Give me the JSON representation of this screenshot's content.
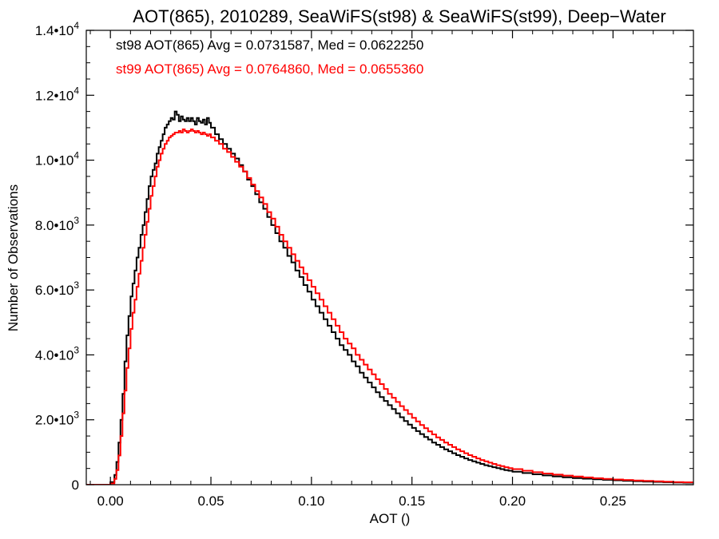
{
  "chart_data": {
    "type": "line",
    "title": "AOT(865), 2010289, SeaWiFS(st98) & SeaWiFS(st99), Deep−Water",
    "xlabel": "AOT ()",
    "ylabel": "Number of Observations",
    "xlim": [
      -0.012,
      0.29
    ],
    "ylim": [
      0,
      14000
    ],
    "grid": false,
    "step": true,
    "x_ticks": [
      {
        "value": 0.0,
        "label": "0.00"
      },
      {
        "value": 0.05,
        "label": "0.05"
      },
      {
        "value": 0.1,
        "label": "0.10"
      },
      {
        "value": 0.15,
        "label": "0.15"
      },
      {
        "value": 0.2,
        "label": "0.20"
      },
      {
        "value": 0.25,
        "label": "0.25"
      }
    ],
    "y_ticks": [
      {
        "value": 0,
        "mantissa": "0",
        "exp": ""
      },
      {
        "value": 2000,
        "mantissa": "2.0•10",
        "exp": "3"
      },
      {
        "value": 4000,
        "mantissa": "4.0•10",
        "exp": "3"
      },
      {
        "value": 6000,
        "mantissa": "6.0•10",
        "exp": "3"
      },
      {
        "value": 8000,
        "mantissa": "8.0•10",
        "exp": "3"
      },
      {
        "value": 10000,
        "mantissa": "1.0•10",
        "exp": "4"
      },
      {
        "value": 12000,
        "mantissa": "1.2•10",
        "exp": "4"
      },
      {
        "value": 14000,
        "mantissa": "1.4•10",
        "exp": "4"
      }
    ],
    "annotations": [
      {
        "text": "st98 AOT(865) Avg = 0.0731587, Med = 0.0622250",
        "color": "#000000"
      },
      {
        "text": "st99 AOT(865) Avg = 0.0764860, Med = 0.0655360",
        "color": "#ff0000"
      }
    ],
    "series": [
      {
        "color": "#000000",
        "points": [
          [
            -0.022,
            0
          ],
          [
            -0.002,
            0
          ],
          [
            0.0,
            80
          ],
          [
            0.002,
            300
          ],
          [
            0.003,
            700
          ],
          [
            0.004,
            1300
          ],
          [
            0.005,
            2000
          ],
          [
            0.006,
            2800
          ],
          [
            0.007,
            3800
          ],
          [
            0.008,
            4600
          ],
          [
            0.009,
            5200
          ],
          [
            0.01,
            5800
          ],
          [
            0.011,
            6200
          ],
          [
            0.012,
            6600
          ],
          [
            0.013,
            7000
          ],
          [
            0.014,
            7300
          ],
          [
            0.015,
            7700
          ],
          [
            0.016,
            8000
          ],
          [
            0.017,
            8400
          ],
          [
            0.018,
            8800
          ],
          [
            0.019,
            9200
          ],
          [
            0.02,
            9500
          ],
          [
            0.021,
            9700
          ],
          [
            0.022,
            9900
          ],
          [
            0.023,
            10200
          ],
          [
            0.024,
            10400
          ],
          [
            0.025,
            10600
          ],
          [
            0.026,
            10800
          ],
          [
            0.027,
            11000
          ],
          [
            0.028,
            11100
          ],
          [
            0.029,
            11200
          ],
          [
            0.03,
            11300
          ],
          [
            0.031,
            11250
          ],
          [
            0.032,
            11500
          ],
          [
            0.033,
            11400
          ],
          [
            0.034,
            11200
          ],
          [
            0.035,
            11350
          ],
          [
            0.036,
            11250
          ],
          [
            0.037,
            11200
          ],
          [
            0.038,
            11300
          ],
          [
            0.039,
            11200
          ],
          [
            0.04,
            11300
          ],
          [
            0.041,
            11200
          ],
          [
            0.042,
            11100
          ],
          [
            0.043,
            11300
          ],
          [
            0.044,
            11200
          ],
          [
            0.045,
            11150
          ],
          [
            0.046,
            11250
          ],
          [
            0.047,
            11100
          ],
          [
            0.048,
            11300
          ],
          [
            0.049,
            11150
          ],
          [
            0.05,
            11000
          ],
          [
            0.052,
            10800
          ],
          [
            0.054,
            10650
          ],
          [
            0.056,
            10500
          ],
          [
            0.058,
            10350
          ],
          [
            0.06,
            10200
          ],
          [
            0.062,
            10050
          ],
          [
            0.064,
            9850
          ],
          [
            0.066,
            9650
          ],
          [
            0.068,
            9400
          ],
          [
            0.07,
            9200
          ],
          [
            0.072,
            8950
          ],
          [
            0.074,
            8700
          ],
          [
            0.076,
            8500
          ],
          [
            0.078,
            8250
          ],
          [
            0.08,
            8000
          ],
          [
            0.082,
            7750
          ],
          [
            0.084,
            7500
          ],
          [
            0.086,
            7300
          ],
          [
            0.088,
            7050
          ],
          [
            0.09,
            6850
          ],
          [
            0.092,
            6600
          ],
          [
            0.094,
            6400
          ],
          [
            0.096,
            6150
          ],
          [
            0.098,
            5950
          ],
          [
            0.1,
            5700
          ],
          [
            0.102,
            5500
          ],
          [
            0.104,
            5300
          ],
          [
            0.106,
            5100
          ],
          [
            0.108,
            4900
          ],
          [
            0.11,
            4700
          ],
          [
            0.112,
            4500
          ],
          [
            0.114,
            4300
          ],
          [
            0.116,
            4150
          ],
          [
            0.118,
            4000
          ],
          [
            0.12,
            3800
          ],
          [
            0.122,
            3650
          ],
          [
            0.124,
            3450
          ],
          [
            0.126,
            3300
          ],
          [
            0.128,
            3150
          ],
          [
            0.13,
            3000
          ],
          [
            0.132,
            2850
          ],
          [
            0.134,
            2700
          ],
          [
            0.136,
            2580
          ],
          [
            0.138,
            2450
          ],
          [
            0.14,
            2330
          ],
          [
            0.142,
            2200
          ],
          [
            0.144,
            2080
          ],
          [
            0.146,
            1960
          ],
          [
            0.148,
            1850
          ],
          [
            0.15,
            1750
          ],
          [
            0.152,
            1650
          ],
          [
            0.154,
            1560
          ],
          [
            0.156,
            1470
          ],
          [
            0.158,
            1390
          ],
          [
            0.16,
            1300
          ],
          [
            0.162,
            1230
          ],
          [
            0.164,
            1160
          ],
          [
            0.166,
            1090
          ],
          [
            0.168,
            1030
          ],
          [
            0.17,
            970
          ],
          [
            0.172,
            910
          ],
          [
            0.174,
            860
          ],
          [
            0.176,
            810
          ],
          [
            0.178,
            760
          ],
          [
            0.18,
            720
          ],
          [
            0.182,
            680
          ],
          [
            0.184,
            640
          ],
          [
            0.186,
            600
          ],
          [
            0.188,
            570
          ],
          [
            0.19,
            540
          ],
          [
            0.192,
            510
          ],
          [
            0.194,
            480
          ],
          [
            0.196,
            450
          ],
          [
            0.198,
            430
          ],
          [
            0.2,
            400
          ],
          [
            0.205,
            360
          ],
          [
            0.21,
            320
          ],
          [
            0.215,
            285
          ],
          [
            0.22,
            255
          ],
          [
            0.225,
            230
          ],
          [
            0.23,
            205
          ],
          [
            0.235,
            185
          ],
          [
            0.24,
            165
          ],
          [
            0.245,
            150
          ],
          [
            0.25,
            135
          ],
          [
            0.255,
            120
          ],
          [
            0.26,
            108
          ],
          [
            0.265,
            96
          ],
          [
            0.27,
            86
          ],
          [
            0.275,
            77
          ],
          [
            0.28,
            69
          ],
          [
            0.285,
            62
          ],
          [
            0.29,
            56
          ]
        ]
      },
      {
        "color": "#ff0000",
        "points": [
          [
            -0.022,
            0
          ],
          [
            -0.002,
            0
          ],
          [
            0.0,
            40
          ],
          [
            0.002,
            180
          ],
          [
            0.003,
            450
          ],
          [
            0.004,
            900
          ],
          [
            0.005,
            1500
          ],
          [
            0.006,
            2200
          ],
          [
            0.007,
            2900
          ],
          [
            0.008,
            3600
          ],
          [
            0.009,
            4200
          ],
          [
            0.01,
            4800
          ],
          [
            0.011,
            5300
          ],
          [
            0.012,
            5700
          ],
          [
            0.013,
            6100
          ],
          [
            0.014,
            6500
          ],
          [
            0.015,
            6900
          ],
          [
            0.016,
            7300
          ],
          [
            0.017,
            7700
          ],
          [
            0.018,
            8100
          ],
          [
            0.019,
            8500
          ],
          [
            0.02,
            8900
          ],
          [
            0.021,
            9200
          ],
          [
            0.022,
            9500
          ],
          [
            0.023,
            9800
          ],
          [
            0.024,
            10000
          ],
          [
            0.025,
            10200
          ],
          [
            0.026,
            10350
          ],
          [
            0.027,
            10500
          ],
          [
            0.028,
            10600
          ],
          [
            0.029,
            10700
          ],
          [
            0.03,
            10750
          ],
          [
            0.031,
            10800
          ],
          [
            0.032,
            10850
          ],
          [
            0.033,
            10850
          ],
          [
            0.034,
            10900
          ],
          [
            0.035,
            10850
          ],
          [
            0.036,
            10950
          ],
          [
            0.037,
            10900
          ],
          [
            0.038,
            10850
          ],
          [
            0.039,
            10900
          ],
          [
            0.04,
            10950
          ],
          [
            0.041,
            10900
          ],
          [
            0.042,
            10850
          ],
          [
            0.043,
            10900
          ],
          [
            0.044,
            10850
          ],
          [
            0.045,
            10800
          ],
          [
            0.046,
            10850
          ],
          [
            0.047,
            10800
          ],
          [
            0.048,
            10750
          ],
          [
            0.049,
            10800
          ],
          [
            0.05,
            10700
          ],
          [
            0.052,
            10600
          ],
          [
            0.054,
            10500
          ],
          [
            0.056,
            10350
          ],
          [
            0.058,
            10250
          ],
          [
            0.06,
            10100
          ],
          [
            0.062,
            9950
          ],
          [
            0.064,
            9800
          ],
          [
            0.066,
            9650
          ],
          [
            0.068,
            9450
          ],
          [
            0.07,
            9250
          ],
          [
            0.072,
            9050
          ],
          [
            0.074,
            8850
          ],
          [
            0.076,
            8650
          ],
          [
            0.078,
            8400
          ],
          [
            0.08,
            8200
          ],
          [
            0.082,
            7950
          ],
          [
            0.084,
            7700
          ],
          [
            0.086,
            7500
          ],
          [
            0.088,
            7300
          ],
          [
            0.09,
            7100
          ],
          [
            0.092,
            6900
          ],
          [
            0.094,
            6700
          ],
          [
            0.096,
            6500
          ],
          [
            0.098,
            6300
          ],
          [
            0.1,
            6100
          ],
          [
            0.102,
            5900
          ],
          [
            0.104,
            5700
          ],
          [
            0.106,
            5500
          ],
          [
            0.108,
            5300
          ],
          [
            0.11,
            5100
          ],
          [
            0.112,
            4900
          ],
          [
            0.114,
            4700
          ],
          [
            0.116,
            4500
          ],
          [
            0.118,
            4350
          ],
          [
            0.12,
            4200
          ],
          [
            0.122,
            4000
          ],
          [
            0.124,
            3850
          ],
          [
            0.126,
            3700
          ],
          [
            0.128,
            3550
          ],
          [
            0.13,
            3400
          ],
          [
            0.132,
            3250
          ],
          [
            0.134,
            3100
          ],
          [
            0.136,
            2950
          ],
          [
            0.138,
            2800
          ],
          [
            0.14,
            2680
          ],
          [
            0.142,
            2550
          ],
          [
            0.144,
            2420
          ],
          [
            0.146,
            2300
          ],
          [
            0.148,
            2180
          ],
          [
            0.15,
            2060
          ],
          [
            0.152,
            1950
          ],
          [
            0.154,
            1840
          ],
          [
            0.156,
            1740
          ],
          [
            0.158,
            1640
          ],
          [
            0.16,
            1550
          ],
          [
            0.162,
            1460
          ],
          [
            0.164,
            1380
          ],
          [
            0.166,
            1300
          ],
          [
            0.168,
            1230
          ],
          [
            0.17,
            1160
          ],
          [
            0.172,
            1090
          ],
          [
            0.174,
            1030
          ],
          [
            0.176,
            970
          ],
          [
            0.178,
            910
          ],
          [
            0.18,
            860
          ],
          [
            0.182,
            810
          ],
          [
            0.184,
            760
          ],
          [
            0.186,
            720
          ],
          [
            0.188,
            680
          ],
          [
            0.19,
            640
          ],
          [
            0.192,
            600
          ],
          [
            0.194,
            570
          ],
          [
            0.196,
            540
          ],
          [
            0.198,
            510
          ],
          [
            0.2,
            480
          ],
          [
            0.205,
            430
          ],
          [
            0.21,
            385
          ],
          [
            0.215,
            345
          ],
          [
            0.22,
            310
          ],
          [
            0.225,
            280
          ],
          [
            0.23,
            250
          ],
          [
            0.235,
            225
          ],
          [
            0.24,
            200
          ],
          [
            0.245,
            180
          ],
          [
            0.25,
            160
          ],
          [
            0.255,
            145
          ],
          [
            0.26,
            130
          ],
          [
            0.265,
            115
          ],
          [
            0.27,
            103
          ],
          [
            0.275,
            92
          ],
          [
            0.28,
            82
          ],
          [
            0.285,
            73
          ],
          [
            0.29,
            65
          ]
        ]
      }
    ]
  }
}
